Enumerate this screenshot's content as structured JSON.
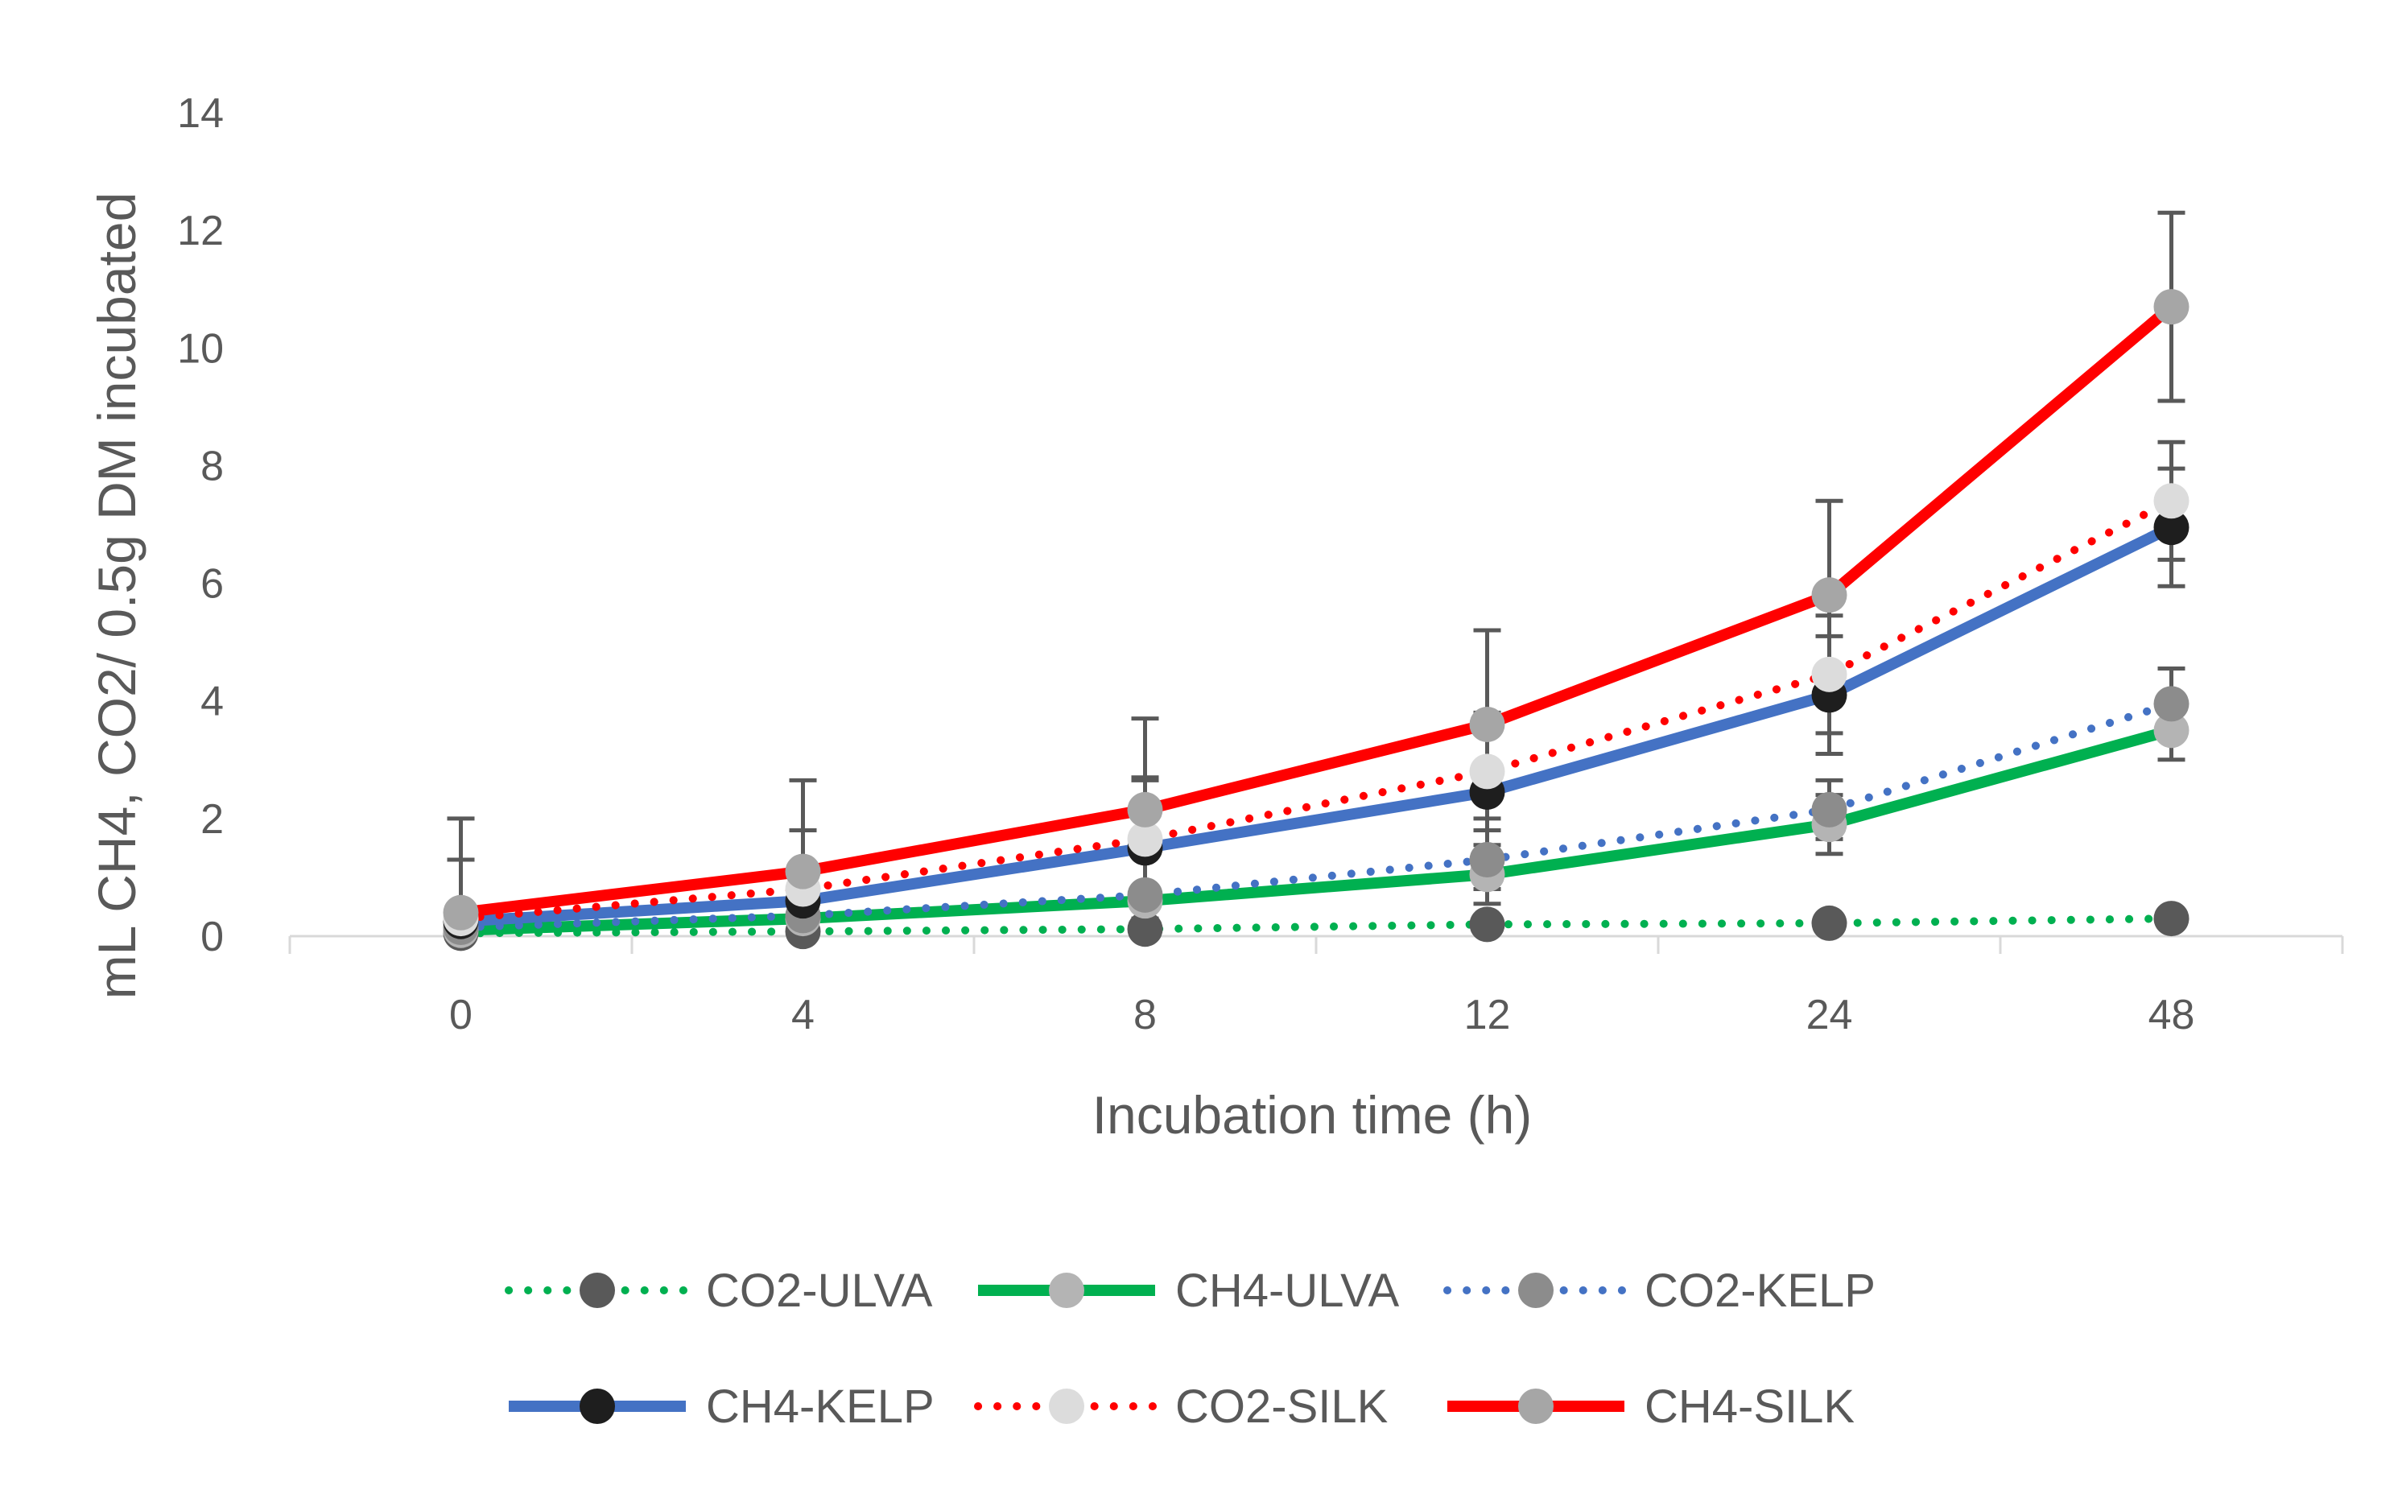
{
  "chart_data": {
    "type": "line",
    "title": "",
    "xlabel": "Incubation time (h)",
    "ylabel": "mL CH4, CO2/ 0.5g DM incubated",
    "categories": [
      "0",
      "4",
      "8",
      "12",
      "24",
      "48"
    ],
    "ylim": [
      0,
      14
    ],
    "yticks": [
      0,
      2,
      4,
      6,
      8,
      10,
      12,
      14
    ],
    "grid": false,
    "legend_position": "bottom",
    "series": [
      {
        "name": "CO2-ULVA",
        "values": [
          0.05,
          0.08,
          0.12,
          0.2,
          0.22,
          0.3
        ],
        "error": [
          0,
          0,
          0,
          0,
          0,
          0
        ],
        "line_color": "#00b050",
        "line_style": "dotted",
        "marker_color": "#595959"
      },
      {
        "name": "CH4-ULVA",
        "values": [
          0.1,
          0.3,
          0.6,
          1.05,
          1.9,
          3.5
        ],
        "error": [
          0,
          0,
          0,
          0.5,
          0.5,
          0.5
        ],
        "line_color": "#00b050",
        "line_style": "solid",
        "marker_color": "#b4b4b4"
      },
      {
        "name": "CO2-KELP",
        "values": [
          0.15,
          0.35,
          0.7,
          1.3,
          2.15,
          3.95
        ],
        "error": [
          0,
          0,
          0,
          0.5,
          0.5,
          0.6
        ],
        "line_color": "#4472c4",
        "line_style": "dotted",
        "marker_color": "#8c8c8c"
      },
      {
        "name": "CH4-KELP",
        "values": [
          0.25,
          0.6,
          1.5,
          2.45,
          4.1,
          6.95
        ],
        "error": [
          0,
          1.2,
          1.2,
          1.2,
          1.0,
          1.0
        ],
        "line_color": "#4472c4",
        "line_style": "solid",
        "marker_color": "#1e1e1e"
      },
      {
        "name": "CO2-SILK",
        "values": [
          0.3,
          0.8,
          1.65,
          2.8,
          4.45,
          7.4
        ],
        "error": [
          1.0,
          1.0,
          1.0,
          1.0,
          1.0,
          1.0
        ],
        "line_color": "#ff0000",
        "line_style": "dotted",
        "marker_color": "#dcdcdc"
      },
      {
        "name": "CH4-SILK",
        "values": [
          0.4,
          1.1,
          2.15,
          3.6,
          5.8,
          10.7
        ],
        "error": [
          1.6,
          1.55,
          1.55,
          1.6,
          1.6,
          1.6
        ],
        "line_color": "#ff0000",
        "line_style": "solid",
        "marker_color": "#a6a6a6"
      }
    ]
  }
}
